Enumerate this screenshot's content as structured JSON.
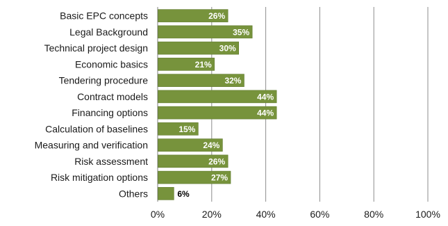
{
  "chart_data": {
    "type": "bar",
    "orientation": "horizontal",
    "categories": [
      "Basic EPC concepts",
      "Legal Background",
      "Technical project design",
      "Economic basics",
      "Tendering procedure",
      "Contract models",
      "Financing options",
      "Calculation of baselines",
      "Measuring and verification",
      "Risk assessment",
      "Risk mitigation options",
      "Others"
    ],
    "values": [
      26,
      35,
      30,
      21,
      32,
      44,
      44,
      15,
      24,
      26,
      27,
      6
    ],
    "data_labels": [
      "26%",
      "35%",
      "30%",
      "21%",
      "32%",
      "44%",
      "44%",
      "15%",
      "24%",
      "26%",
      "27%",
      "6%"
    ],
    "x_ticks": [
      "0%",
      "20%",
      "40%",
      "60%",
      "80%",
      "100%"
    ],
    "xlim": [
      0,
      100
    ],
    "grid": "vertical",
    "legend": "none",
    "colors": {
      "bar": "#77933c",
      "bar_edge": "#5f7a2c",
      "grid": "#8c8c8c",
      "label_inside": "#ffffff",
      "label_outside": "#000000"
    }
  }
}
